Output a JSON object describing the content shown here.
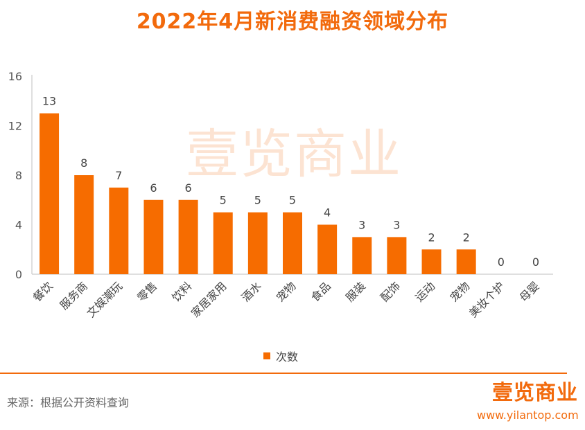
{
  "chart_data": {
    "type": "bar",
    "title": "2022年4月新消费融资领域分布",
    "categories": [
      "餐饮",
      "服务商",
      "文娱潮玩",
      "零售",
      "饮料",
      "家居家用",
      "酒水",
      "宠物",
      "食品",
      "服装",
      "配饰",
      "运动",
      "宠物",
      "美妆个护",
      "母婴"
    ],
    "series": [
      {
        "name": "次数",
        "values": [
          13,
          8,
          7,
          6,
          6,
          5,
          5,
          5,
          4,
          3,
          3,
          2,
          2,
          0,
          0
        ]
      }
    ],
    "ylim": [
      0,
      16
    ],
    "yticks": [
      0,
      4,
      8,
      12,
      16
    ],
    "xlabel": "",
    "ylabel": "",
    "legend": "bottom-center",
    "grid": false,
    "bar_color": "#f66c00"
  },
  "watermark": "壹览商业",
  "footer": {
    "source": "来源：根据公开资料查询",
    "logo_text": "壹览商业",
    "url": "www.yilantop.com"
  },
  "colors": {
    "accent": "#f26a0c",
    "bar": "#f66c00"
  }
}
